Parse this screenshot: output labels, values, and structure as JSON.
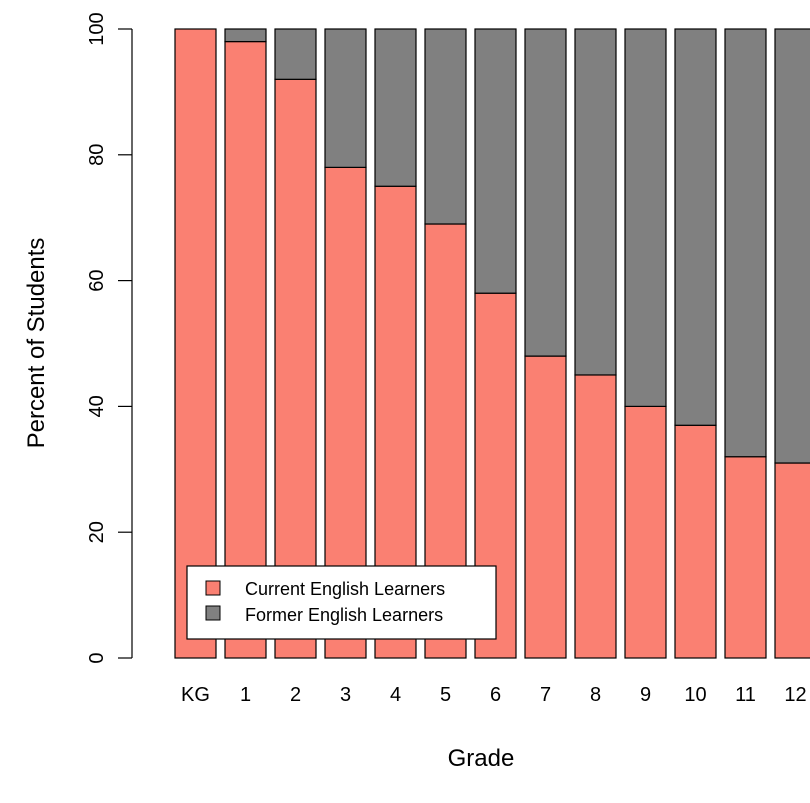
{
  "chart_data": {
    "type": "bar",
    "stacked": true,
    "categories": [
      "KG",
      "1",
      "2",
      "3",
      "4",
      "5",
      "6",
      "7",
      "8",
      "9",
      "10",
      "11",
      "12"
    ],
    "series": [
      {
        "name": "Current English Learners",
        "color": "#FA8072",
        "values": [
          100,
          98,
          92,
          78,
          75,
          69,
          58,
          48,
          45,
          40,
          37,
          32,
          31
        ]
      },
      {
        "name": "Former English Learners",
        "color": "#808080",
        "values": [
          0,
          2,
          8,
          22,
          25,
          31,
          42,
          52,
          55,
          60,
          63,
          68,
          69
        ]
      }
    ],
    "xlabel": "Grade",
    "ylabel": "Percent of Students",
    "ylim": [
      0,
      100
    ],
    "yticks": [
      "0",
      "20",
      "40",
      "60",
      "80",
      "100"
    ],
    "grid": false,
    "legend": "bottom-left"
  }
}
